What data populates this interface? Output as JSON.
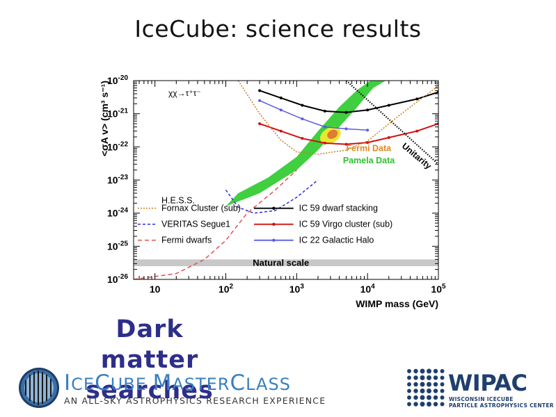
{
  "slide": {
    "title": "IceCube: science results",
    "caption_lines": [
      "Dark",
      "matter",
      "searches"
    ]
  },
  "colors": {
    "caption": "#2e2e8a",
    "pamela": "#3fcf3f",
    "fermi_region": "#e8e830",
    "fermi_core": "#e07b30",
    "hess": "#c87e1e",
    "veritas": "#2a2ad0",
    "fermi_dwarfs": "#e05050",
    "ic59_dwarf": "#000000",
    "ic59_virgo": "#d01010",
    "ic22_halo": "#5a5ae0",
    "natural_band": "#c8c8c8",
    "unitarity": "#000000"
  },
  "chart_data": {
    "type": "line",
    "title": "",
    "channel_label": "χχ→τ⁺τ⁻",
    "xlabel": "WIMP mass (GeV)",
    "ylabel": "<σA v> (cm³ s⁻¹)",
    "xscale": "log",
    "yscale": "log",
    "xlim": [
      5,
      100000
    ],
    "ylim": [
      1e-26,
      1e-20
    ],
    "x_tick_labels": [
      {
        "value": 10,
        "base": "10",
        "exp": ""
      },
      {
        "value": 100,
        "base": "10",
        "exp": "2"
      },
      {
        "value": 1000,
        "base": "10",
        "exp": "3"
      },
      {
        "value": 10000,
        "base": "10",
        "exp": "4"
      },
      {
        "value": 100000,
        "base": "10",
        "exp": "5"
      }
    ],
    "y_tick_labels": [
      {
        "value": 1e-20,
        "base": "10",
        "exp": "-20"
      },
      {
        "value": 1e-21,
        "base": "10",
        "exp": "-21"
      },
      {
        "value": 1e-22,
        "base": "10",
        "exp": "-22"
      },
      {
        "value": 1e-23,
        "base": "10",
        "exp": "-23"
      },
      {
        "value": 1e-24,
        "base": "10",
        "exp": "-24"
      },
      {
        "value": 1e-25,
        "base": "10",
        "exp": "-25"
      },
      {
        "value": 1e-26,
        "base": "10",
        "exp": "-26"
      }
    ],
    "band": {
      "label": "Natural scale",
      "y_low": 2.5e-26,
      "y_high": 4e-26
    },
    "annotations": [
      {
        "label": "Fermi Data",
        "x": 5000,
        "y": 7.5e-23,
        "color": "#e08a20"
      },
      {
        "label": "Pamela Data",
        "x": 4500,
        "y": 3.2e-23,
        "color": "#2fbf2f"
      },
      {
        "label": "Unitarity",
        "x": 30000,
        "y": 1e-22,
        "color": "#000000",
        "rotate": 40
      }
    ],
    "legend_left": {
      "position": "bottom-left",
      "entries": [
        {
          "label": "H.E.S.S.",
          "style": "none"
        },
        {
          "label": "Fornax Cluster (sub)",
          "style": "hess"
        },
        {
          "label": "VERITAS Segue1",
          "style": "veritas"
        },
        {
          "label": "Fermi dwarfs",
          "style": "fermi_dwarfs"
        }
      ]
    },
    "legend_right": {
      "position": "bottom-right",
      "entries": [
        {
          "label": "IC 59 dwarf stacking",
          "style": "ic59_dwarf"
        },
        {
          "label": "IC 59 Virgo cluster (sub)",
          "style": "ic59_virgo"
        },
        {
          "label": "IC 22 Galactic Halo",
          "style": "ic22_halo"
        }
      ]
    },
    "series": [
      {
        "key": "ic59_dwarf",
        "dash": "",
        "markers": true,
        "width": 2,
        "points": [
          [
            300,
            5e-21
          ],
          [
            600,
            3e-21
          ],
          [
            1200,
            1.8e-21
          ],
          [
            2500,
            1.2e-21
          ],
          [
            5000,
            1.1e-21
          ],
          [
            10000,
            1.3e-21
          ],
          [
            20000,
            1.8e-21
          ],
          [
            50000,
            2.8e-21
          ],
          [
            100000,
            4.5e-21
          ]
        ]
      },
      {
        "key": "ic59_virgo",
        "dash": "",
        "markers": true,
        "width": 2,
        "points": [
          [
            300,
            5e-22
          ],
          [
            600,
            3e-22
          ],
          [
            1200,
            1.8e-22
          ],
          [
            2500,
            1.3e-22
          ],
          [
            5000,
            1.2e-22
          ],
          [
            10000,
            1.35e-22
          ],
          [
            20000,
            1.9e-22
          ],
          [
            50000,
            3e-22
          ],
          [
            100000,
            5e-22
          ]
        ]
      },
      {
        "key": "ic22_halo",
        "dash": "",
        "markers": true,
        "width": 1.5,
        "points": [
          [
            300,
            2.5e-21
          ],
          [
            600,
            1.3e-21
          ],
          [
            1200,
            7e-22
          ],
          [
            2500,
            4e-22
          ],
          [
            5000,
            3.5e-22
          ],
          [
            10000,
            3.2e-22
          ]
        ]
      },
      {
        "key": "hess",
        "dash": "2,2",
        "markers": false,
        "width": 1.5,
        "points": [
          [
            150,
            1e-20
          ],
          [
            300,
            1e-21
          ],
          [
            600,
            1.6e-22
          ],
          [
            1000,
            7e-23
          ],
          [
            2000,
            6e-23
          ],
          [
            5000,
            8e-23
          ],
          [
            10000,
            1.5e-22
          ],
          [
            30000,
            1e-21
          ],
          [
            100000,
            7e-21
          ]
        ]
      },
      {
        "key": "veritas",
        "dash": "4,3",
        "markers": false,
        "width": 1.5,
        "points": [
          [
            100,
            5e-24
          ],
          [
            150,
            1.5e-24
          ],
          [
            250,
            1e-24
          ],
          [
            500,
            1.2e-24
          ],
          [
            1000,
            3e-24
          ],
          [
            2000,
            1e-23
          ]
        ]
      },
      {
        "key": "fermi_dwarfs",
        "dash": "6,4",
        "markers": false,
        "width": 1.5,
        "points": [
          [
            5,
            1e-26
          ],
          [
            20,
            1.5e-26
          ],
          [
            50,
            4e-26
          ],
          [
            100,
            1.5e-25
          ],
          [
            200,
            1e-24
          ],
          [
            500,
            5e-24
          ],
          [
            1000,
            2e-23
          ]
        ]
      },
      {
        "key": "unitarity",
        "dash": "1.5,2",
        "markers": false,
        "width": 2.2,
        "points": [
          [
            5000,
            1e-20
          ],
          [
            100000,
            3e-23
          ]
        ]
      }
    ]
  },
  "masterclass": {
    "title_big": "I",
    "title_rest1": "CE",
    "title_big2": "C",
    "title_rest2": "UBE ",
    "title_big3": "M",
    "title_rest3": "ASTER",
    "title_big4": "C",
    "title_rest4": "LASS",
    "subtitle": "AN ALL-SKY ASTROPHYSICS RESEARCH EXPERIENCE"
  },
  "wipac": {
    "word": "WIPAC",
    "line1": "Wisconsin IceCube",
    "line2": "Particle Astrophysics Center"
  }
}
